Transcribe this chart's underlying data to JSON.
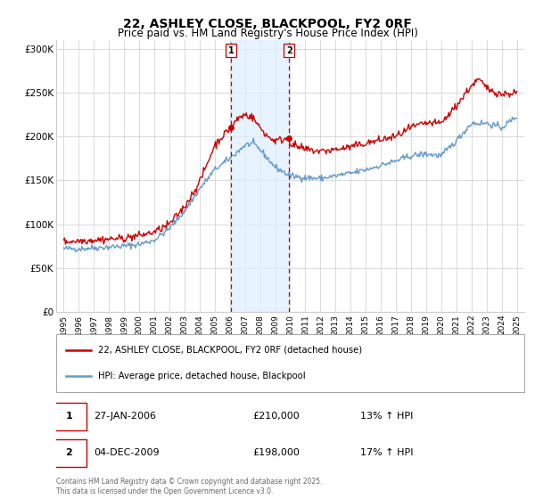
{
  "title": "22, ASHLEY CLOSE, BLACKPOOL, FY2 0RF",
  "subtitle": "Price paid vs. HM Land Registry's House Price Index (HPI)",
  "legend_line1": "22, ASHLEY CLOSE, BLACKPOOL, FY2 0RF (detached house)",
  "legend_line2": "HPI: Average price, detached house, Blackpool",
  "footer": "Contains HM Land Registry data © Crown copyright and database right 2025.\nThis data is licensed under the Open Government Licence v3.0.",
  "sale1_date": "27-JAN-2006",
  "sale1_price": "£210,000",
  "sale1_hpi": "13% ↑ HPI",
  "sale2_date": "04-DEC-2009",
  "sale2_price": "£198,000",
  "sale2_hpi": "17% ↑ HPI",
  "vline1_x": 2006.07,
  "vline2_x": 2009.92,
  "sale1_marker_x": 2006.07,
  "sale1_marker_y": 210000,
  "sale2_marker_x": 2009.92,
  "sale2_marker_y": 198000,
  "ylim": [
    0,
    310000
  ],
  "xlim_start": 1994.5,
  "xlim_end": 2025.5,
  "red_color": "#cc0000",
  "blue_color": "#6699cc",
  "shade_color": "#ddeeff",
  "grid_color": "#cccccc",
  "bg_color": "#ffffff",
  "title_fontsize": 10,
  "subtitle_fontsize": 8.5,
  "axis_fontsize": 7.5,
  "ytick_labels": [
    "£0",
    "£50K",
    "£100K",
    "£150K",
    "£200K",
    "£250K",
    "£300K"
  ],
  "ytick_values": [
    0,
    50000,
    100000,
    150000,
    200000,
    250000,
    300000
  ],
  "xtick_years": [
    1995,
    1996,
    1997,
    1998,
    1999,
    2000,
    2001,
    2002,
    2003,
    2004,
    2005,
    2006,
    2007,
    2008,
    2009,
    2010,
    2011,
    2012,
    2013,
    2014,
    2015,
    2016,
    2017,
    2018,
    2019,
    2020,
    2021,
    2022,
    2023,
    2024,
    2025
  ]
}
